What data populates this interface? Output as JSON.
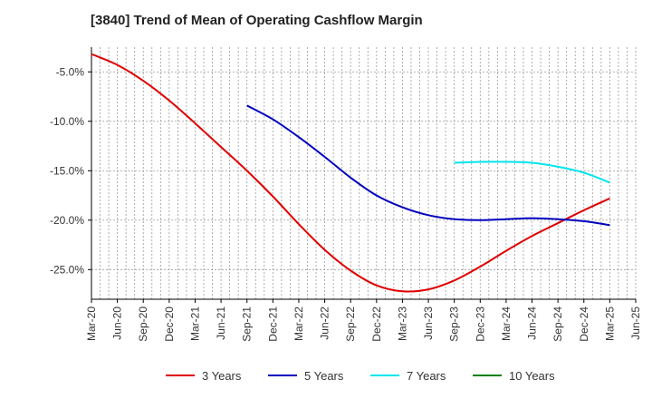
{
  "chart_data": {
    "type": "line",
    "title": "[3840]  Trend of Mean of Operating Cashflow Margin",
    "x_ticks": [
      "Mar-20",
      "Jun-20",
      "Sep-20",
      "Dec-20",
      "Mar-21",
      "Jun-21",
      "Sep-21",
      "Dec-21",
      "Mar-22",
      "Jun-22",
      "Sep-22",
      "Dec-22",
      "Mar-23",
      "Jun-23",
      "Sep-23",
      "Dec-23",
      "Mar-24",
      "Jun-24",
      "Sep-24",
      "Dec-24",
      "Mar-25",
      "Jun-25"
    ],
    "y_ticks": [
      -5.0,
      -10.0,
      -15.0,
      -20.0,
      -25.0
    ],
    "y_tick_labels": [
      "-5.0%",
      "-10.0%",
      "-15.0%",
      "-20.0%",
      "-25.0%"
    ],
    "ylim": [
      -28.0,
      -2.5
    ],
    "grid": true,
    "legend_position": "bottom",
    "series": [
      {
        "name": "3 Years",
        "color": "#e00000",
        "values": [
          -3.2,
          -4.3,
          -5.9,
          -7.9,
          -10.2,
          -12.6,
          -15.0,
          -17.6,
          -20.4,
          -23.0,
          -25.1,
          -26.6,
          -27.2,
          -27.0,
          -26.1,
          -24.7,
          -23.1,
          -21.6,
          -20.3,
          -19.0,
          -17.8,
          null
        ]
      },
      {
        "name": "5 Years",
        "color": "#0000c0",
        "values": [
          null,
          null,
          null,
          null,
          null,
          null,
          -8.4,
          -9.8,
          -11.6,
          -13.6,
          -15.7,
          -17.5,
          -18.7,
          -19.5,
          -19.9,
          -20.0,
          -19.9,
          -19.8,
          -19.9,
          -20.1,
          -20.5,
          null
        ]
      },
      {
        "name": "7 Years",
        "color": "#00e5ee",
        "values": [
          null,
          null,
          null,
          null,
          null,
          null,
          null,
          null,
          null,
          null,
          null,
          null,
          null,
          null,
          -14.2,
          -14.1,
          -14.1,
          -14.2,
          -14.6,
          -15.2,
          -16.2,
          null
        ]
      },
      {
        "name": "10 Years",
        "color": "#008000",
        "values": [
          null,
          null,
          null,
          null,
          null,
          null,
          null,
          null,
          null,
          null,
          null,
          null,
          null,
          null,
          null,
          null,
          null,
          null,
          null,
          null,
          null,
          null
        ]
      }
    ]
  }
}
